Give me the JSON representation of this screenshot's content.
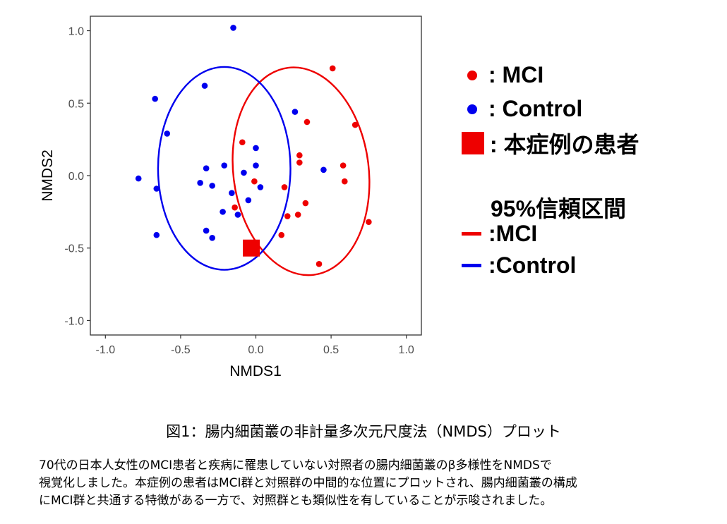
{
  "colors": {
    "mci": "#ee0000",
    "control": "#0000ee",
    "panel_border": "#333333"
  },
  "chart_data": {
    "type": "scatter",
    "xlabel": "NMDS1",
    "ylabel": "NMDS2",
    "xlim": [
      -1.1,
      1.1
    ],
    "ylim": [
      -1.1,
      1.1
    ],
    "x_ticks": [
      -1.0,
      -0.5,
      0.0,
      0.5,
      1.0
    ],
    "x_tick_labels": [
      "-1.0",
      "-0.5",
      "0.0",
      "0.5",
      "1.0"
    ],
    "y_ticks": [
      1.0,
      0.5,
      0.0,
      -0.5,
      -1.0
    ],
    "y_tick_labels": [
      "1.0",
      "0.5",
      "0.0",
      "-0.5",
      "-1.0"
    ],
    "grid": false,
    "legend_position": "right",
    "series": [
      {
        "name": "MCI",
        "color": "#ee0000",
        "points": [
          [
            0.51,
            0.74
          ],
          [
            0.66,
            0.35
          ],
          [
            0.34,
            0.37
          ],
          [
            -0.09,
            0.23
          ],
          [
            0.29,
            0.14
          ],
          [
            0.29,
            0.09
          ],
          [
            0.58,
            0.07
          ],
          [
            -0.01,
            -0.04
          ],
          [
            0.59,
            -0.04
          ],
          [
            0.19,
            -0.08
          ],
          [
            -0.14,
            -0.22
          ],
          [
            0.33,
            -0.19
          ],
          [
            0.21,
            -0.28
          ],
          [
            0.28,
            -0.27
          ],
          [
            0.75,
            -0.32
          ],
          [
            0.17,
            -0.41
          ],
          [
            0.42,
            -0.61
          ]
        ]
      },
      {
        "name": "Control",
        "color": "#0000ee",
        "points": [
          [
            -0.15,
            1.02
          ],
          [
            -0.34,
            0.62
          ],
          [
            -0.67,
            0.53
          ],
          [
            -0.59,
            0.29
          ],
          [
            0.26,
            0.44
          ],
          [
            0.0,
            0.19
          ],
          [
            -0.21,
            0.07
          ],
          [
            0.0,
            0.07
          ],
          [
            -0.33,
            0.05
          ],
          [
            -0.08,
            0.02
          ],
          [
            0.45,
            0.04
          ],
          [
            -0.78,
            -0.02
          ],
          [
            -0.37,
            -0.05
          ],
          [
            -0.29,
            -0.07
          ],
          [
            -0.66,
            -0.09
          ],
          [
            0.03,
            -0.08
          ],
          [
            -0.16,
            -0.12
          ],
          [
            -0.05,
            -0.17
          ],
          [
            -0.22,
            -0.25
          ],
          [
            -0.12,
            -0.27
          ],
          [
            -0.33,
            -0.38
          ],
          [
            -0.66,
            -0.41
          ],
          [
            -0.29,
            -0.43
          ]
        ]
      },
      {
        "name": "本症例の患者",
        "color": "#ee0000",
        "marker": "square",
        "points": [
          [
            -0.03,
            -0.5
          ]
        ]
      }
    ],
    "ellipses": [
      {
        "name": "MCI",
        "level": "95%",
        "color": "#ee0000",
        "center": [
          0.3,
          0.03
        ],
        "rx": 0.45,
        "ry": 0.72,
        "angle_deg": 7
      },
      {
        "name": "Control",
        "level": "95%",
        "color": "#0000ee",
        "center": [
          -0.21,
          0.05
        ],
        "rx": 0.44,
        "ry": 0.7,
        "angle_deg": 0
      }
    ]
  },
  "legend": {
    "mci_label": ": MCI",
    "control_label": ": Control",
    "patient_label": ": 本症例の患者",
    "ci_title": "95%信頼区間",
    "mci_line_label": ":MCI",
    "control_line_label": ":Control"
  },
  "caption": {
    "title": "図1：腸内細菌叢の非計量多次元尺度法（NMDS）プロット",
    "line1": "70代の日本人女性のMCI患者と疾病に罹患していない対照者の腸内細菌叢のβ多様性をNMDSで",
    "line2": "視覚化しました。本症例の患者はMCI群と対照群の中間的な位置にプロットされ、腸内細菌叢の構成",
    "line3": "にMCI群と共通する特徴がある一方で、対照群とも類似性を有していることが示唆されました。"
  }
}
